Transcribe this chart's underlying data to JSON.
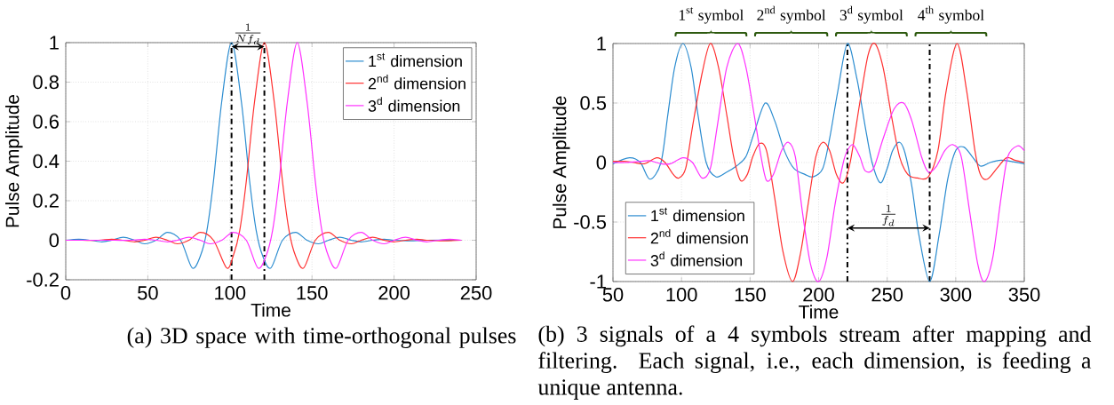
{
  "chart_data": [
    {
      "type": "line",
      "xlabel": "Time",
      "ylabel": "Pulse Amplitude",
      "xlim": [
        0,
        250
      ],
      "ylim": [
        -0.2,
        1
      ],
      "xticks": [
        0,
        50,
        100,
        150,
        200,
        250
      ],
      "yticks": [
        -0.2,
        0,
        0.2,
        0.4,
        0.6,
        0.8,
        1
      ],
      "grid": true,
      "legend": "top right",
      "marker": "none",
      "line_style": "solid",
      "series": [
        {
          "name": "1$^{st}$ dimension",
          "color": "#2b8cd0",
          "x": [
            0,
            8,
            15,
            22,
            28,
            35,
            42,
            48,
            55,
            62,
            70,
            77,
            82,
            86,
            90,
            95,
            101,
            107,
            112,
            116,
            120,
            125,
            132,
            140,
            147,
            154,
            160,
            167,
            174,
            180,
            187,
            194,
            200,
            210,
            220,
            241
          ],
          "values": [
            0,
            0.005,
            0,
            -0.008,
            0,
            0.015,
            0,
            -0.018,
            0,
            0.04,
            0,
            -0.14,
            -0.08,
            0.05,
            0.3,
            0.7,
            1,
            0.7,
            0.3,
            0.05,
            -0.08,
            -0.14,
            0,
            0.04,
            0,
            -0.018,
            0,
            0.015,
            0,
            -0.008,
            0,
            0.005,
            0,
            -0.003,
            0,
            0
          ]
        },
        {
          "name": "2$^{nd}$ dimension",
          "color": "#ff3030",
          "x": [
            0,
            10,
            20,
            28,
            35,
            42,
            48,
            55,
            62,
            68,
            75,
            82,
            90,
            98,
            102,
            106,
            110,
            115,
            121,
            127,
            132,
            136,
            140,
            145,
            152,
            160,
            167,
            174,
            180,
            187,
            194,
            200,
            207,
            214,
            220,
            230,
            241
          ],
          "values": [
            0,
            0,
            0,
            0.005,
            0,
            -0.008,
            0,
            0.015,
            0,
            -0.018,
            0,
            0.04,
            0,
            -0.14,
            -0.08,
            0.05,
            0.3,
            0.7,
            1,
            0.7,
            0.3,
            0.05,
            -0.08,
            -0.14,
            0,
            0.04,
            0,
            -0.018,
            0,
            0.015,
            0,
            -0.008,
            0,
            0.005,
            0,
            -0.003,
            0
          ]
        },
        {
          "name": "3$^{d}$ dimension",
          "color": "#ff30ff",
          "x": [
            0,
            20,
            30,
            40,
            48,
            55,
            62,
            68,
            75,
            82,
            88,
            95,
            102,
            110,
            117,
            122,
            126,
            130,
            135,
            141,
            147,
            152,
            156,
            160,
            165,
            172,
            180,
            187,
            194,
            200,
            207,
            214,
            220,
            227,
            234,
            241
          ],
          "values": [
            0,
            0,
            0,
            0,
            0.005,
            0,
            -0.008,
            0,
            0.015,
            0,
            -0.018,
            0,
            0.04,
            0,
            -0.14,
            -0.08,
            0.05,
            0.3,
            0.7,
            1,
            0.7,
            0.3,
            0.05,
            -0.08,
            -0.14,
            0,
            0.04,
            0,
            -0.018,
            0,
            0.015,
            0,
            -0.008,
            0,
            0.005,
            0
          ]
        }
      ],
      "ref_lines": [
        {
          "axis": "x",
          "value": 101,
          "line_style": "dashdot",
          "color": "#000000"
        },
        {
          "axis": "x",
          "value": 121,
          "line_style": "dashdot",
          "color": "#000000"
        }
      ],
      "annotations": [
        "\\frac{1}{Nf_d}",
        "(a) 3D space with time-orthogonal pulses"
      ]
    },
    {
      "type": "line",
      "xlabel": "Time",
      "ylabel": "Pulse Amplitude",
      "xlim": [
        50,
        350
      ],
      "ylim": [
        -1,
        1
      ],
      "xticks": [
        50,
        100,
        150,
        200,
        250,
        300,
        350
      ],
      "yticks": [
        -1,
        -0.5,
        0,
        0.5,
        1
      ],
      "grid": true,
      "legend": "bottom left",
      "marker": "none",
      "line_style": "solid",
      "series": [
        {
          "name": "1$^{st}$ dimension",
          "color": "#2b8cd0",
          "x": [
            50,
            62,
            70,
            77,
            85,
            90,
            95,
            101,
            107,
            112,
            118,
            125,
            133,
            140,
            147,
            153,
            161,
            168,
            175,
            182,
            190,
            196,
            203,
            208,
            214,
            221,
            228,
            234,
            239,
            245,
            250,
            254,
            259,
            263,
            268,
            273,
            281,
            288,
            294,
            300,
            306,
            312,
            318,
            325,
            333,
            340,
            350
          ],
          "values": [
            -0.01,
            0.04,
            0,
            -0.14,
            0,
            0.4,
            0.8,
            1,
            0.8,
            0.4,
            0,
            -0.12,
            -0.08,
            -0.03,
            0.05,
            0.25,
            0.5,
            0.35,
            0.1,
            -0.05,
            -0.1,
            -0.12,
            -0.05,
            0.2,
            0.6,
            1,
            0.7,
            0.3,
            0,
            -0.17,
            -0.05,
            0.1,
            0.17,
            0.08,
            -0.2,
            -0.6,
            -1,
            -0.6,
            -0.15,
            0.1,
            0.13,
            0.05,
            -0.03,
            0,
            0.02,
            0.01,
            -0.01
          ]
        },
        {
          "name": "2$^{nd}$ dimension",
          "color": "#ff3030",
          "x": [
            50,
            58,
            65,
            73,
            82,
            88,
            94,
            98,
            103,
            108,
            115,
            121,
            127,
            133,
            138,
            143,
            148,
            152,
            157,
            162,
            168,
            174,
            181,
            187,
            193,
            198,
            203,
            208,
            213,
            218,
            223,
            230,
            236,
            241,
            247,
            253,
            259,
            265,
            272,
            280,
            287,
            293,
            301,
            308,
            314,
            318,
            323,
            330,
            337,
            343,
            350
          ],
          "values": [
            0.01,
            0.01,
            0,
            -0.01,
            0.04,
            0,
            -0.1,
            -0.13,
            -0.05,
            0.3,
            0.75,
            1,
            0.8,
            0.4,
            0.05,
            -0.15,
            -0.1,
            0.05,
            0.16,
            0.1,
            -0.3,
            -0.75,
            -1,
            -0.75,
            -0.3,
            0.05,
            0.17,
            0.1,
            -0.1,
            -0.17,
            0,
            0.5,
            0.9,
            1,
            0.8,
            0.4,
            0.05,
            -0.1,
            -0.13,
            -0.12,
            0.1,
            0.6,
            1,
            0.6,
            0.1,
            -0.1,
            -0.14,
            -0.05,
            0.04,
            0.02,
            0
          ]
        },
        {
          "name": "3$^{d}$ dimension",
          "color": "#ff30ff",
          "x": [
            50,
            60,
            70,
            77,
            85,
            92,
            101,
            108,
            115,
            121,
            126,
            133,
            141,
            147,
            153,
            158,
            162,
            167,
            173,
            178,
            183,
            188,
            194,
            200,
            206,
            212,
            218,
            221,
            225,
            230,
            234,
            240,
            247,
            255,
            262,
            268,
            275,
            280,
            286,
            292,
            298,
            304,
            310,
            316,
            321,
            327,
            333,
            338,
            345,
            350
          ],
          "values": [
            0,
            0,
            0.01,
            0.015,
            -0.01,
            -0.01,
            0.04,
            0,
            -0.13,
            -0.05,
            0.3,
            0.8,
            1,
            0.8,
            0.4,
            0.05,
            -0.15,
            -0.1,
            0.1,
            0.17,
            0.05,
            -0.4,
            -0.85,
            -1,
            -0.8,
            -0.35,
            0,
            0.1,
            0.15,
            0.05,
            -0.07,
            -0.05,
            0.2,
            0.45,
            0.5,
            0.35,
            0.05,
            -0.08,
            -0.03,
            0.1,
            0.15,
            0.05,
            -0.4,
            -0.85,
            -1,
            -0.8,
            -0.3,
            0.05,
            0.14,
            0.1
          ]
        }
      ],
      "ref_lines": [
        {
          "axis": "x",
          "value": 221,
          "line_style": "dashdot",
          "color": "#000000"
        },
        {
          "axis": "x",
          "value": 281,
          "line_style": "dashdot",
          "color": "#000000"
        }
      ],
      "annotations": [
        "\\frac{1}{f_d}",
        "1$^{st}$ symbol",
        "2$^{nd}$ symbol",
        "3$^{d}$ symbol",
        "4$^{th}$ symbol",
        "(b) 3 signals of a 4 symbols stream after mapping and filtering. Each signal, i.e., each dimension, is feeding a unique antenna."
      ]
    }
  ]
}
